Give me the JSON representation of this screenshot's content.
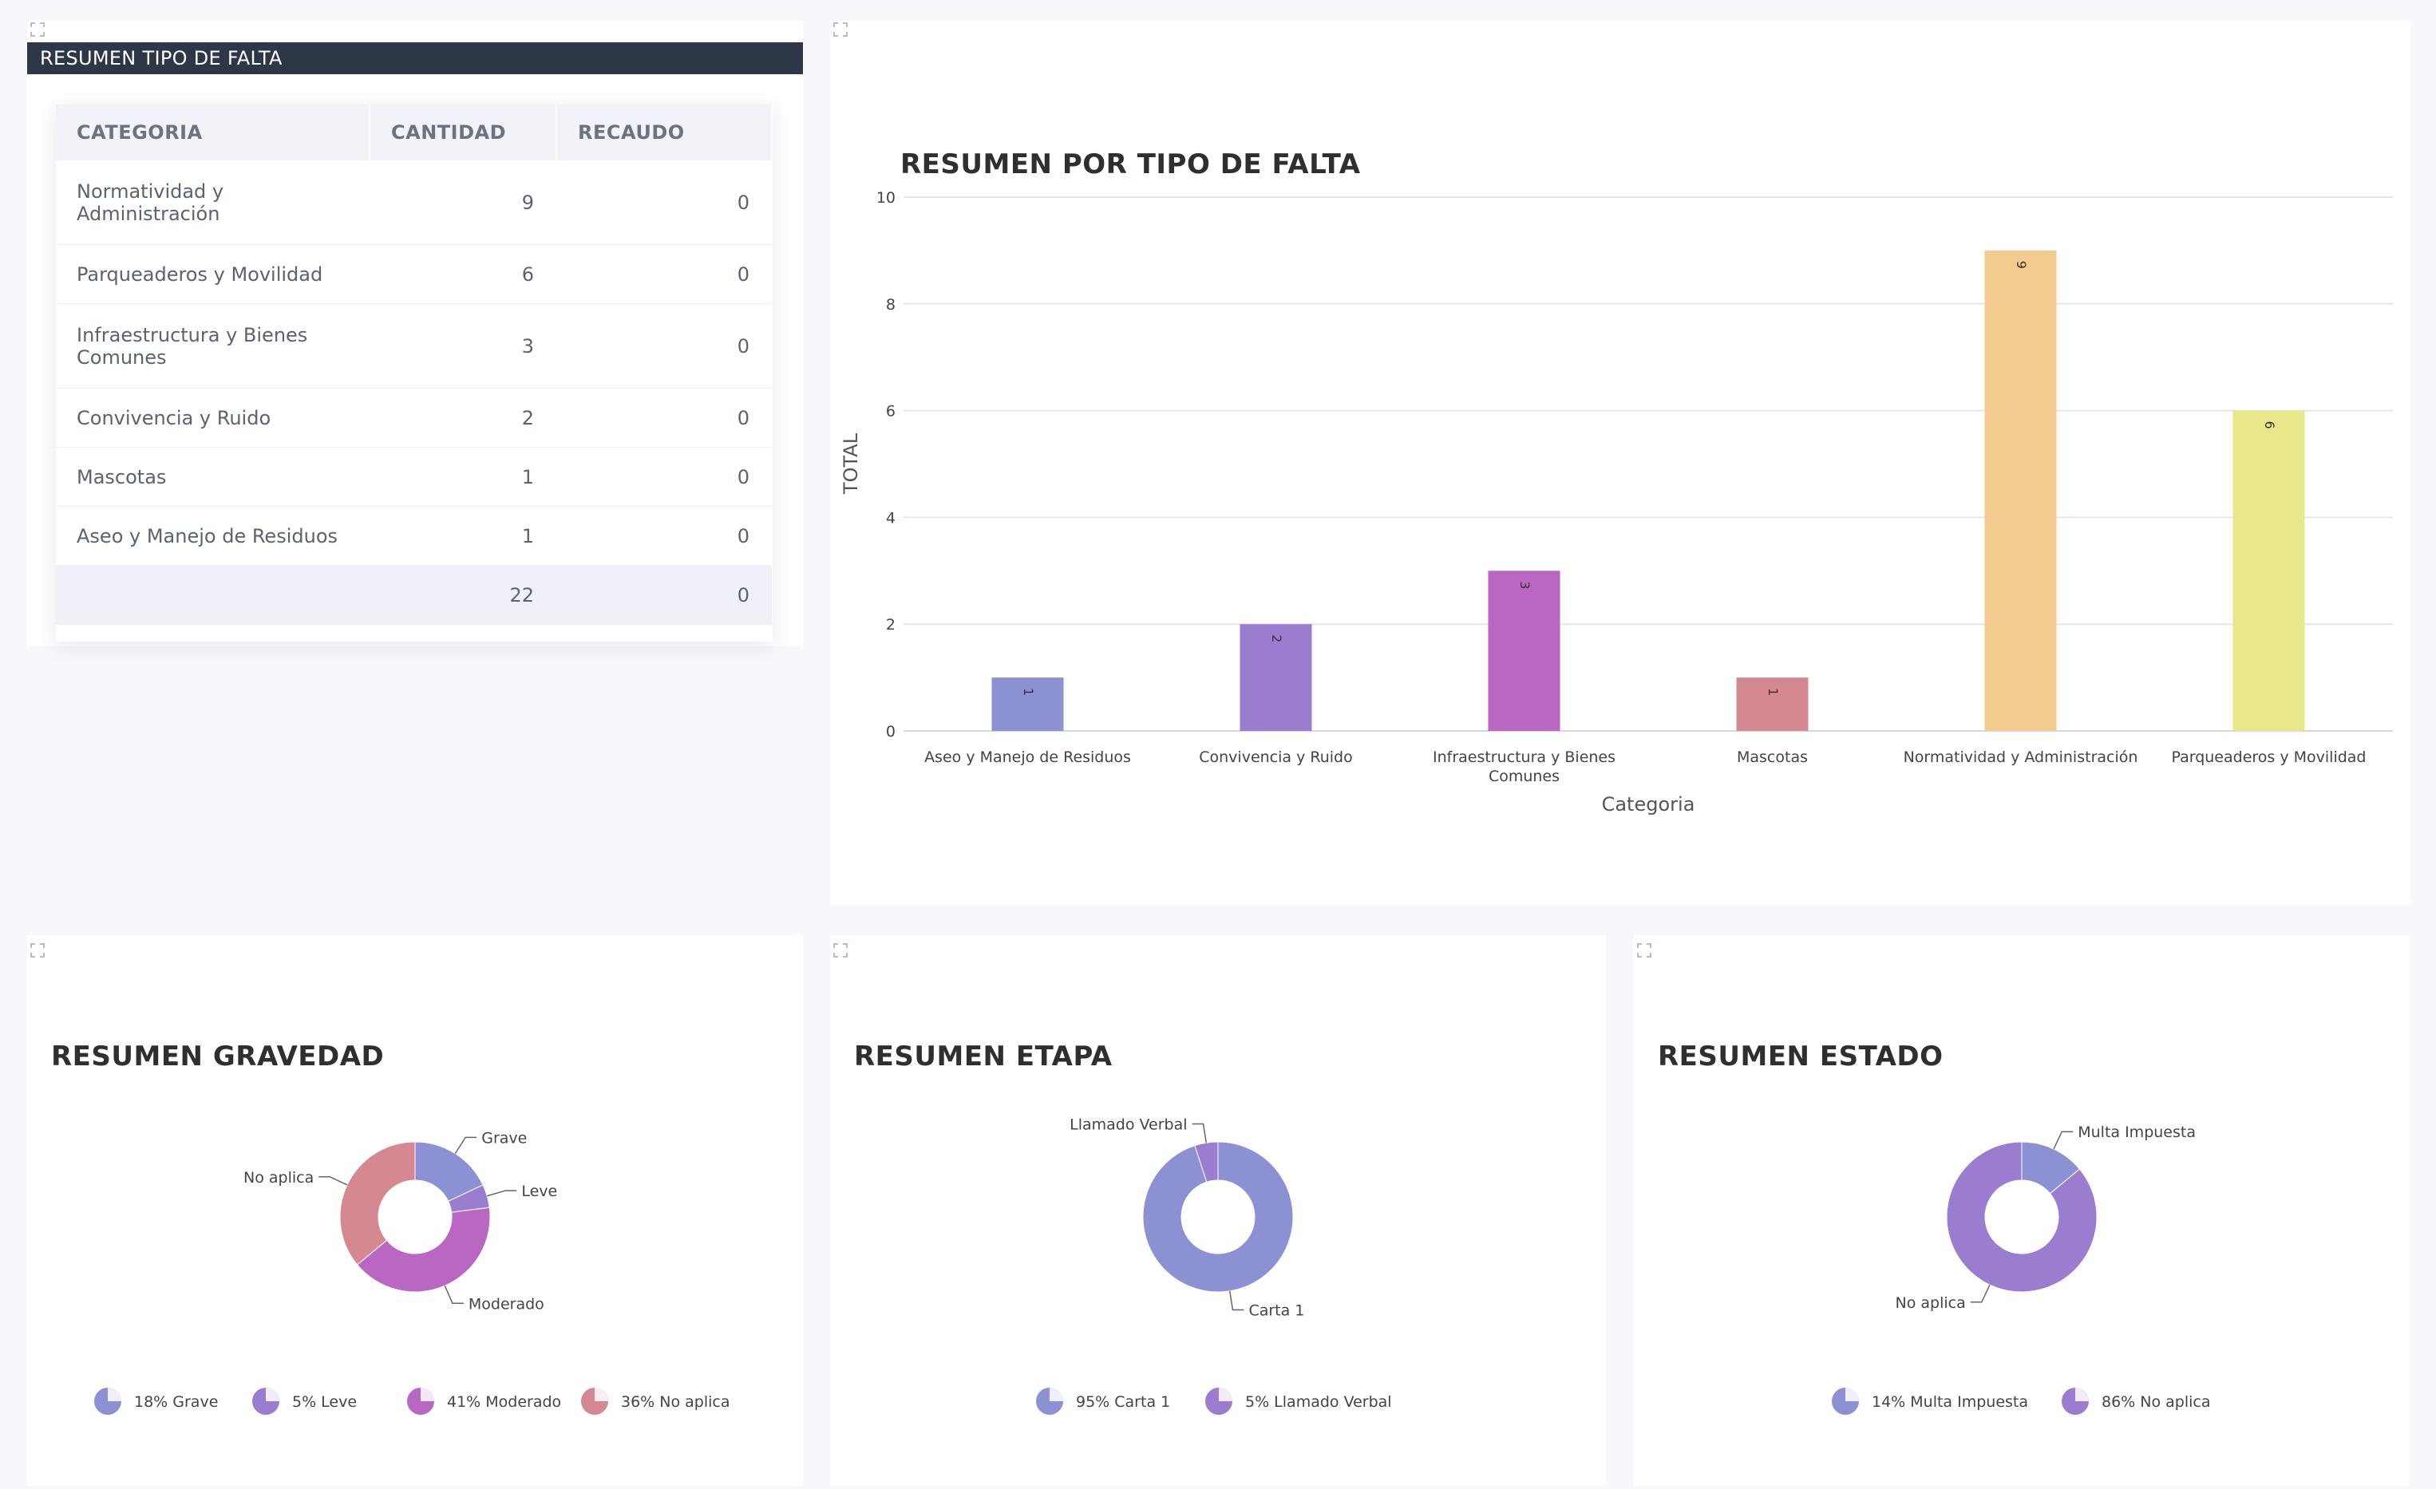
{
  "table_panel": {
    "header": "RESUMEN TIPO DE FALTA",
    "columns": [
      "CATEGORIA",
      "CANTIDAD",
      "RECAUDO"
    ],
    "rows": [
      {
        "categoria": "Normatividad y Administración",
        "cantidad": "9",
        "recaudo": "0"
      },
      {
        "categoria": "Parqueaderos y Movilidad",
        "cantidad": "6",
        "recaudo": "0"
      },
      {
        "categoria": "Infraestructura y Bienes Comunes",
        "cantidad": "3",
        "recaudo": "0"
      },
      {
        "categoria": "Convivencia y Ruido",
        "cantidad": "2",
        "recaudo": "0"
      },
      {
        "categoria": "Mascotas",
        "cantidad": "1",
        "recaudo": "0"
      },
      {
        "categoria": "Aseo y Manejo de Residuos",
        "cantidad": "1",
        "recaudo": "0"
      }
    ],
    "totals": {
      "cantidad": "22",
      "recaudo": "0"
    }
  },
  "icons": {
    "expand": "expand-corners-icon",
    "legend": "pie-slice-icon"
  },
  "colors": {
    "header_bg": "#2d3748",
    "bars": [
      "#8c91d4",
      "#9b7dd0",
      "#b967c2",
      "#d68892",
      "#f4cb8e",
      "#e8e88a"
    ],
    "gravedad": [
      "#8c91d4",
      "#9b7dd0",
      "#b967c2",
      "#d68892"
    ],
    "etapa": [
      "#8c91d4",
      "#9b7dd0"
    ],
    "estado": [
      "#8c91d4",
      "#9b7dd0"
    ]
  },
  "chart_data": [
    {
      "type": "bar",
      "title": "RESUMEN POR TIPO DE FALTA",
      "categories": [
        "Aseo y Manejo de Residuos",
        "Convivencia y Ruido",
        "Infraestructura y Bienes Comunes",
        "Mascotas",
        "Normatividad y Administración",
        "Parqueaderos y Movilidad"
      ],
      "values": [
        1,
        2,
        3,
        1,
        9,
        6
      ],
      "xlabel": "Categoria",
      "ylabel": "TOTAL",
      "ylim": [
        0,
        10
      ],
      "yticks": [
        0,
        2,
        4,
        6,
        8,
        10
      ],
      "grid": true,
      "data_labels": true
    },
    {
      "type": "pie",
      "title": "RESUMEN GRAVEDAD",
      "labels": [
        "Grave",
        "Leve",
        "Moderado",
        "No aplica"
      ],
      "values": [
        18,
        5,
        41,
        36
      ],
      "legend": [
        "18% Grave",
        "5% Leve",
        "41% Moderado",
        "36% No aplica"
      ],
      "legend_position": "bottom"
    },
    {
      "type": "pie",
      "title": "RESUMEN ETAPA",
      "labels": [
        "Carta 1",
        "Llamado Verbal"
      ],
      "values": [
        95,
        5
      ],
      "legend": [
        "95% Carta 1",
        "5% Llamado Verbal"
      ],
      "legend_position": "bottom"
    },
    {
      "type": "pie",
      "title": "RESUMEN ESTADO",
      "labels": [
        "Multa Impuesta",
        "No aplica"
      ],
      "values": [
        14,
        86
      ],
      "legend": [
        "14% Multa Impuesta",
        "86% No aplica"
      ],
      "legend_position": "bottom"
    }
  ]
}
